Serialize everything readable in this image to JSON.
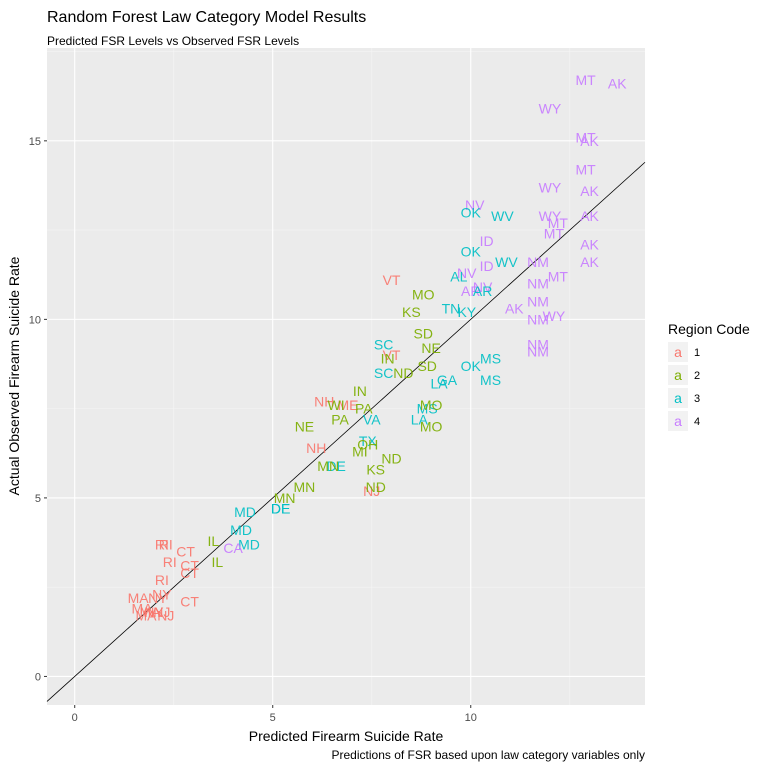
{
  "chart_data": {
    "type": "scatter",
    "title": "Random Forest Law Category Model Results",
    "subtitle": "Predicted FSR Levels vs Observed FSR Levels",
    "xlabel": "Predicted Firearm Suicide Rate",
    "ylabel": "Actual Observed Firearm Suicide Rate",
    "caption": "Predictions of FSR based upon law category variables only",
    "xlim": [
      -0.7,
      14.4
    ],
    "ylim": [
      -0.8,
      17.6
    ],
    "xticks": [
      0,
      5,
      10
    ],
    "yticks": [
      0,
      5,
      10,
      15
    ],
    "reference_line": {
      "slope": 1,
      "intercept": 0
    },
    "legend": {
      "title": "Region Code",
      "position": "right",
      "glyph": "a",
      "entries": [
        {
          "label": "1",
          "color": "#F8766D"
        },
        {
          "label": "2",
          "color": "#7CAE00"
        },
        {
          "label": "3",
          "color": "#00BFC4"
        },
        {
          "label": "4",
          "color": "#C77CFF"
        }
      ]
    },
    "points": [
      {
        "label": "MT",
        "x": 12.9,
        "y": 16.7,
        "region": 4
      },
      {
        "label": "AK",
        "x": 13.7,
        "y": 16.6,
        "region": 4
      },
      {
        "label": "WY",
        "x": 12.0,
        "y": 15.9,
        "region": 4
      },
      {
        "label": "MT",
        "x": 12.9,
        "y": 15.1,
        "region": 4
      },
      {
        "label": "AK",
        "x": 13.0,
        "y": 15.0,
        "region": 4
      },
      {
        "label": "MT",
        "x": 12.9,
        "y": 14.2,
        "region": 4
      },
      {
        "label": "WY",
        "x": 12.0,
        "y": 13.7,
        "region": 4
      },
      {
        "label": "AK",
        "x": 13.0,
        "y": 13.6,
        "region": 4
      },
      {
        "label": "WY",
        "x": 12.0,
        "y": 12.9,
        "region": 4
      },
      {
        "label": "AK",
        "x": 13.0,
        "y": 12.9,
        "region": 4
      },
      {
        "label": "MT",
        "x": 12.2,
        "y": 12.7,
        "region": 4
      },
      {
        "label": "MT",
        "x": 12.1,
        "y": 12.4,
        "region": 4
      },
      {
        "label": "AK",
        "x": 13.0,
        "y": 12.1,
        "region": 4
      },
      {
        "label": "AK",
        "x": 13.0,
        "y": 11.6,
        "region": 4
      },
      {
        "label": "NM",
        "x": 11.7,
        "y": 11.6,
        "region": 4
      },
      {
        "label": "MT",
        "x": 12.2,
        "y": 11.2,
        "region": 4
      },
      {
        "label": "NM",
        "x": 11.7,
        "y": 11.0,
        "region": 4
      },
      {
        "label": "NM",
        "x": 11.7,
        "y": 10.5,
        "region": 4
      },
      {
        "label": "NM",
        "x": 11.7,
        "y": 10.0,
        "region": 4
      },
      {
        "label": "AK",
        "x": 11.1,
        "y": 10.3,
        "region": 4
      },
      {
        "label": "WY",
        "x": 12.1,
        "y": 10.1,
        "region": 4
      },
      {
        "label": "NM",
        "x": 11.7,
        "y": 9.3,
        "region": 4
      },
      {
        "label": "NM",
        "x": 11.7,
        "y": 9.1,
        "region": 4
      },
      {
        "label": "NV",
        "x": 10.1,
        "y": 13.2,
        "region": 4
      },
      {
        "label": "ID",
        "x": 10.4,
        "y": 12.2,
        "region": 4
      },
      {
        "label": "ID",
        "x": 10.4,
        "y": 11.5,
        "region": 4
      },
      {
        "label": "NV",
        "x": 9.9,
        "y": 11.3,
        "region": 4
      },
      {
        "label": "NV",
        "x": 10.3,
        "y": 10.9,
        "region": 4
      },
      {
        "label": "AR",
        "x": 10.0,
        "y": 10.8,
        "region": 4
      },
      {
        "label": "OK",
        "x": 10.0,
        "y": 13.0,
        "region": 3
      },
      {
        "label": "WV",
        "x": 10.8,
        "y": 12.9,
        "region": 3
      },
      {
        "label": "OK",
        "x": 10.0,
        "y": 11.9,
        "region": 3
      },
      {
        "label": "WV",
        "x": 10.9,
        "y": 11.6,
        "region": 3
      },
      {
        "label": "AL",
        "x": 9.7,
        "y": 11.2,
        "region": 3
      },
      {
        "label": "AR",
        "x": 10.3,
        "y": 10.8,
        "region": 3
      },
      {
        "label": "KY",
        "x": 9.9,
        "y": 10.2,
        "region": 3
      },
      {
        "label": "MS",
        "x": 10.5,
        "y": 8.9,
        "region": 3
      },
      {
        "label": "MS",
        "x": 10.5,
        "y": 8.3,
        "region": 3
      },
      {
        "label": "OK",
        "x": 10.0,
        "y": 8.7,
        "region": 3
      },
      {
        "label": "TN",
        "x": 9.5,
        "y": 10.3,
        "region": 3
      },
      {
        "label": "SC",
        "x": 7.8,
        "y": 9.3,
        "region": 3
      },
      {
        "label": "SC",
        "x": 7.8,
        "y": 8.5,
        "region": 3
      },
      {
        "label": "LA",
        "x": 9.2,
        "y": 8.2,
        "region": 3
      },
      {
        "label": "GA",
        "x": 9.4,
        "y": 8.3,
        "region": 3
      },
      {
        "label": "MS",
        "x": 8.9,
        "y": 7.5,
        "region": 3
      },
      {
        "label": "LA",
        "x": 8.7,
        "y": 7.2,
        "region": 3
      },
      {
        "label": "VA",
        "x": 7.5,
        "y": 7.2,
        "region": 3
      },
      {
        "label": "MD",
        "x": 4.3,
        "y": 4.6,
        "region": 3
      },
      {
        "label": "MD",
        "x": 4.2,
        "y": 4.1,
        "region": 3
      },
      {
        "label": "MD",
        "x": 4.4,
        "y": 3.7,
        "region": 3
      },
      {
        "label": "DE",
        "x": 5.2,
        "y": 4.7,
        "region": 3
      },
      {
        "label": "DE",
        "x": 5.2,
        "y": 4.7,
        "region": 3
      },
      {
        "label": "DE",
        "x": 6.6,
        "y": 5.9,
        "region": 3
      },
      {
        "label": "TX",
        "x": 7.4,
        "y": 6.6,
        "region": 3
      },
      {
        "label": "VT",
        "x": 8.0,
        "y": 11.1,
        "region": 1
      },
      {
        "label": "VT",
        "x": 8.0,
        "y": 9.0,
        "region": 1
      },
      {
        "label": "NH",
        "x": 6.3,
        "y": 7.7,
        "region": 1
      },
      {
        "label": "ME",
        "x": 6.9,
        "y": 7.6,
        "region": 1
      },
      {
        "label": "NH",
        "x": 6.1,
        "y": 6.4,
        "region": 1
      },
      {
        "label": "NJ",
        "x": 7.5,
        "y": 5.2,
        "region": 1
      },
      {
        "label": "RI",
        "x": 2.3,
        "y": 3.7,
        "region": 1
      },
      {
        "label": "RI",
        "x": 2.2,
        "y": 3.7,
        "region": 1
      },
      {
        "label": "CT",
        "x": 2.8,
        "y": 3.5,
        "region": 1
      },
      {
        "label": "RI",
        "x": 2.4,
        "y": 3.2,
        "region": 1
      },
      {
        "label": "CT",
        "x": 2.9,
        "y": 3.1,
        "region": 1
      },
      {
        "label": "CT",
        "x": 2.9,
        "y": 2.9,
        "region": 1
      },
      {
        "label": "RI",
        "x": 2.2,
        "y": 2.7,
        "region": 1
      },
      {
        "label": "NY",
        "x": 2.2,
        "y": 2.3,
        "region": 1
      },
      {
        "label": "MA",
        "x": 1.6,
        "y": 2.2,
        "region": 1
      },
      {
        "label": "NY",
        "x": 2.1,
        "y": 2.2,
        "region": 1
      },
      {
        "label": "CT",
        "x": 2.9,
        "y": 2.1,
        "region": 1
      },
      {
        "label": "MA",
        "x": 1.7,
        "y": 1.9,
        "region": 1
      },
      {
        "label": "NJ",
        "x": 2.2,
        "y": 1.8,
        "region": 1
      },
      {
        "label": "MA",
        "x": 1.9,
        "y": 1.8,
        "region": 1
      },
      {
        "label": "NY",
        "x": 2.0,
        "y": 1.8,
        "region": 1
      },
      {
        "label": "MA",
        "x": 1.8,
        "y": 1.7,
        "region": 1
      },
      {
        "label": "NJ",
        "x": 2.3,
        "y": 1.7,
        "region": 1
      },
      {
        "label": "MO",
        "x": 8.8,
        "y": 10.7,
        "region": 2
      },
      {
        "label": "KS",
        "x": 8.5,
        "y": 10.2,
        "region": 2
      },
      {
        "label": "SD",
        "x": 8.8,
        "y": 9.6,
        "region": 2
      },
      {
        "label": "NE",
        "x": 9.0,
        "y": 9.2,
        "region": 2
      },
      {
        "label": "IN",
        "x": 7.9,
        "y": 8.9,
        "region": 2
      },
      {
        "label": "SD",
        "x": 8.9,
        "y": 8.7,
        "region": 2
      },
      {
        "label": "ND",
        "x": 8.3,
        "y": 8.5,
        "region": 2
      },
      {
        "label": "MO",
        "x": 9.0,
        "y": 7.6,
        "region": 2
      },
      {
        "label": "IN",
        "x": 7.2,
        "y": 8.0,
        "region": 2
      },
      {
        "label": "PA",
        "x": 7.3,
        "y": 7.5,
        "region": 2
      },
      {
        "label": "WI",
        "x": 6.6,
        "y": 7.6,
        "region": 2
      },
      {
        "label": "PA",
        "x": 6.7,
        "y": 7.2,
        "region": 2
      },
      {
        "label": "NE",
        "x": 5.8,
        "y": 7.0,
        "region": 2
      },
      {
        "label": "MO",
        "x": 9.0,
        "y": 7.0,
        "region": 2
      },
      {
        "label": "OH",
        "x": 7.4,
        "y": 6.5,
        "region": 2
      },
      {
        "label": "MI",
        "x": 7.2,
        "y": 6.3,
        "region": 2
      },
      {
        "label": "ND",
        "x": 8.0,
        "y": 6.1,
        "region": 2
      },
      {
        "label": "MN",
        "x": 6.4,
        "y": 5.9,
        "region": 2
      },
      {
        "label": "KS",
        "x": 7.6,
        "y": 5.8,
        "region": 2
      },
      {
        "label": "MN",
        "x": 5.8,
        "y": 5.3,
        "region": 2
      },
      {
        "label": "ND",
        "x": 7.6,
        "y": 5.3,
        "region": 2
      },
      {
        "label": "MN",
        "x": 5.3,
        "y": 5.0,
        "region": 2
      },
      {
        "label": "IL",
        "x": 3.5,
        "y": 3.8,
        "region": 2
      },
      {
        "label": "IL",
        "x": 3.6,
        "y": 3.2,
        "region": 2
      },
      {
        "label": "CA",
        "x": 4.0,
        "y": 3.6,
        "region": 4
      }
    ]
  }
}
